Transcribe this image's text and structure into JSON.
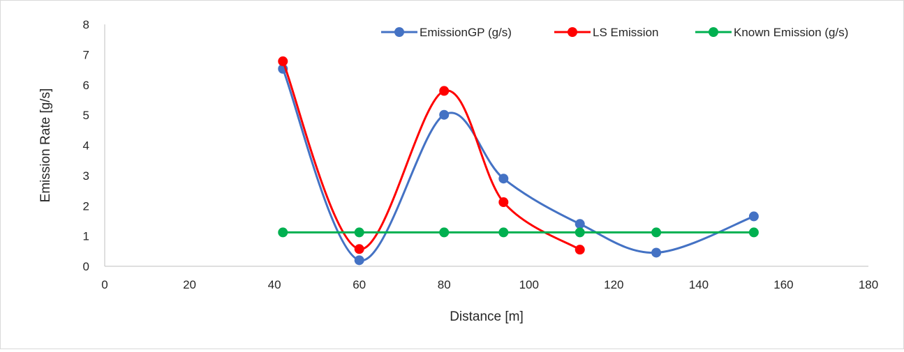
{
  "chart_data": {
    "type": "line",
    "title": "",
    "xlabel": "Distance [m]",
    "ylabel": "Emission Rate [g/s]",
    "xlim": [
      0,
      180
    ],
    "ylim": [
      0,
      8
    ],
    "x_ticks": [
      0,
      20,
      40,
      60,
      80,
      100,
      120,
      140,
      160,
      180
    ],
    "y_ticks": [
      0,
      1,
      2,
      3,
      4,
      5,
      6,
      7,
      8
    ],
    "grid": false,
    "smooth": true,
    "legend_position": "top-right",
    "series": [
      {
        "name": "EmissionGP (g/s)",
        "color": "#4472c4",
        "x": [
          42,
          60,
          80,
          94,
          112,
          130,
          153
        ],
        "y": [
          6.53,
          0.2,
          5.01,
          2.9,
          1.4,
          0.45,
          1.65
        ]
      },
      {
        "name": "LS Emission",
        "color": "#ff0000",
        "x": [
          42,
          60,
          80,
          94,
          112
        ],
        "y": [
          6.78,
          0.57,
          5.8,
          2.12,
          0.55
        ]
      },
      {
        "name": "Known Emission (g/s)",
        "color": "#00b050",
        "x": [
          42,
          60,
          80,
          94,
          112,
          130,
          153
        ],
        "y": [
          1.12,
          1.12,
          1.12,
          1.12,
          1.12,
          1.12,
          1.12
        ]
      }
    ]
  }
}
